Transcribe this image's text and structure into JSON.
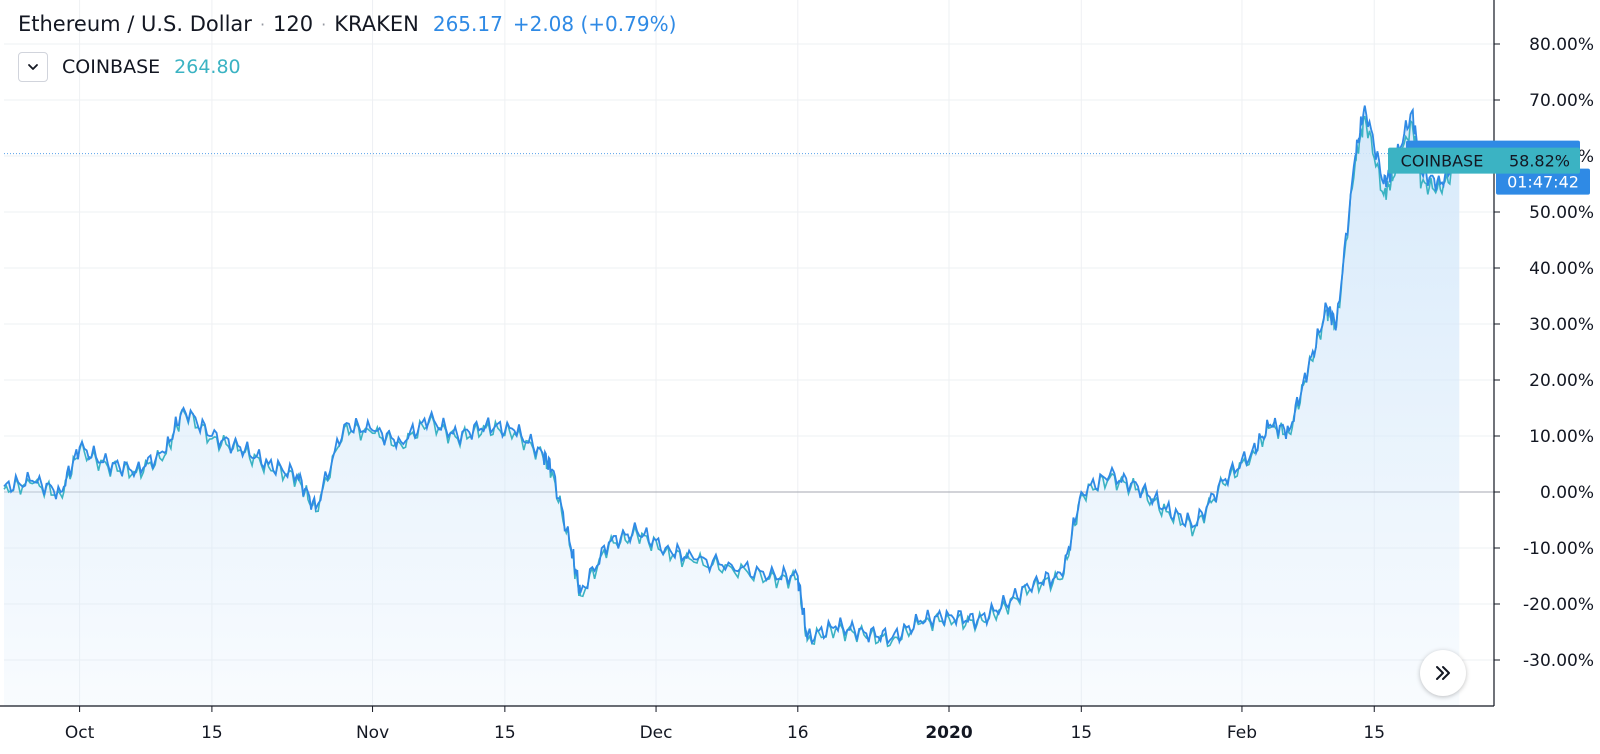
{
  "legend": {
    "symbol_name": "Ethereum / U.S. Dollar",
    "interval": "120",
    "exchange": "KRAKEN",
    "separator": "·",
    "last_price": "265.17",
    "change": "+2.08 (+0.79%)",
    "compare": {
      "symbol": "COINBASE",
      "last_price": "264.80"
    }
  },
  "price_axis": {
    "labels": [
      "80.00%",
      "70.00%",
      "60.00%",
      "50.00%",
      "40.00%",
      "30.00%",
      "20.00%",
      "10.00%",
      "0.00%",
      "-10.00%",
      "-20.00%",
      "-30.00%"
    ]
  },
  "time_axis": {
    "labels": [
      "Oct",
      "15",
      "Nov",
      "15",
      "Dec",
      "16",
      "2020",
      "15",
      "Feb",
      "15"
    ]
  },
  "tags": {
    "kraken": {
      "name": "KRAKEN",
      "value": "60.43%",
      "countdown": "01:47:42"
    },
    "coinbase": {
      "name": "COINBASE",
      "value": "58.82%"
    }
  },
  "icons": {
    "collapse": "chevron-down-icon",
    "scroll": "double-chevron-right-icon"
  },
  "colors": {
    "kraken": "#2f8ae5",
    "coinbase": "#3bb3c3",
    "area_fill": "#d4e8fa",
    "grid": "#eef0f3",
    "zero_line": "#a4a7b0",
    "axis": "#131722"
  },
  "chart_data": {
    "type": "line",
    "x_start": "2019-09-23",
    "x_end": "2020-02-24",
    "x_unit": "date",
    "y_unit": "percent change",
    "ylim": [
      -38,
      88
    ],
    "grid": true,
    "area_fill": true,
    "x": [
      "2019-09-23",
      "2019-09-26",
      "2019-09-29",
      "2019-10-01",
      "2019-10-04",
      "2019-10-07",
      "2019-10-10",
      "2019-10-12",
      "2019-10-15",
      "2019-10-18",
      "2019-10-21",
      "2019-10-24",
      "2019-10-26",
      "2019-10-29",
      "2019-11-01",
      "2019-11-04",
      "2019-11-07",
      "2019-11-10",
      "2019-11-13",
      "2019-11-16",
      "2019-11-19",
      "2019-11-20",
      "2019-11-22",
      "2019-11-23",
      "2019-11-26",
      "2019-11-29",
      "2019-12-02",
      "2019-12-05",
      "2019-12-09",
      "2019-12-13",
      "2019-12-16",
      "2019-12-17",
      "2019-12-20",
      "2019-12-23",
      "2019-12-26",
      "2019-12-29",
      "2020-01-01",
      "2020-01-04",
      "2020-01-07",
      "2020-01-10",
      "2020-01-13",
      "2020-01-15",
      "2020-01-18",
      "2020-01-21",
      "2020-01-24",
      "2020-01-27",
      "2020-01-30",
      "2020-02-02",
      "2020-02-04",
      "2020-02-06",
      "2020-02-08",
      "2020-02-10",
      "2020-02-11",
      "2020-02-13",
      "2020-02-14",
      "2020-02-16",
      "2020-02-17",
      "2020-02-19",
      "2020-02-20",
      "2020-02-22",
      "2020-02-24"
    ],
    "series": [
      {
        "name": "KRAKEN",
        "values": [
          1,
          2,
          0,
          8,
          5,
          4,
          7,
          15,
          10,
          8,
          5,
          3,
          -3,
          12,
          11,
          9,
          13,
          10,
          12,
          11,
          7,
          4,
          -10,
          -18,
          -9,
          -7,
          -10,
          -12,
          -13,
          -15,
          -15,
          -26,
          -24,
          -25,
          -26,
          -23,
          -22,
          -23,
          -20,
          -16,
          -15,
          0,
          3,
          1,
          -3,
          -6,
          2,
          7,
          12,
          11,
          22,
          33,
          30,
          60,
          69,
          55,
          58,
          68,
          57,
          55,
          60.43
        ]
      },
      {
        "name": "COINBASE",
        "values": [
          0.5,
          1.5,
          -0.5,
          7.5,
          4.5,
          3.5,
          6.5,
          14.5,
          9.5,
          7.5,
          4.5,
          2.5,
          -3.5,
          11.5,
          10.5,
          8.5,
          12.5,
          9.5,
          11.5,
          10.5,
          6.5,
          3.5,
          -10.5,
          -18.5,
          -9.5,
          -7.5,
          -10.5,
          -12.5,
          -13.5,
          -15.5,
          -15.5,
          -26.5,
          -24.5,
          -25.5,
          -26.5,
          -23.5,
          -22.5,
          -23.5,
          -20.5,
          -16.5,
          -15.5,
          -0.5,
          2.5,
          0.5,
          -3.5,
          -6.5,
          1.5,
          6.5,
          11.5,
          10.5,
          21.5,
          32.5,
          29.5,
          59,
          67,
          53,
          56,
          66,
          55,
          54,
          58.82
        ]
      }
    ]
  }
}
